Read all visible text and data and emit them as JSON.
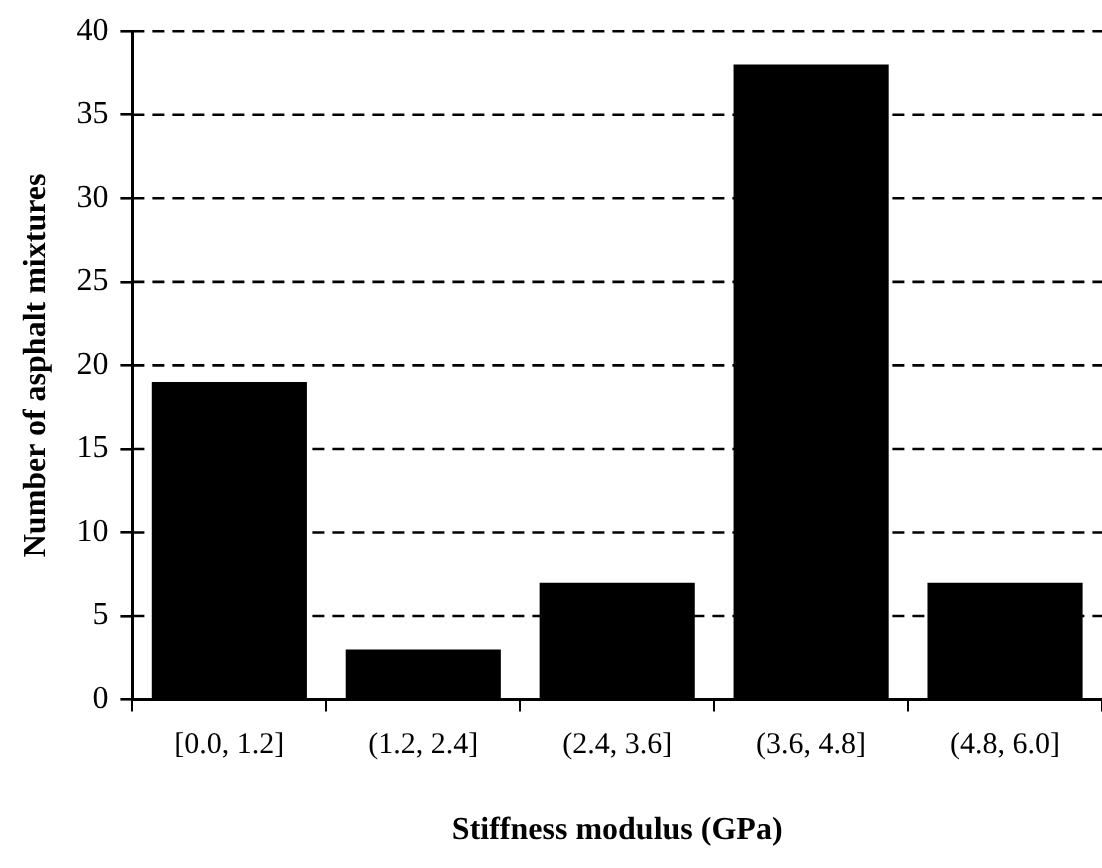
{
  "chart_data": {
    "type": "bar",
    "xlabel": "Stiffness modulus (GPa)",
    "ylabel": "Number of asphalt mixtures",
    "categories": [
      "[0.0, 1.2]",
      "(1.2, 2.4]",
      "(2.4, 3.6]",
      "(3.6, 4.8]",
      "(4.8, 6.0]"
    ],
    "values": [
      19,
      3,
      7,
      38,
      7
    ],
    "color": "#000000",
    "ylim": [
      0,
      40
    ],
    "yticks": [
      0,
      5,
      10,
      15,
      20,
      25,
      30,
      35,
      40
    ],
    "grid": "y"
  }
}
